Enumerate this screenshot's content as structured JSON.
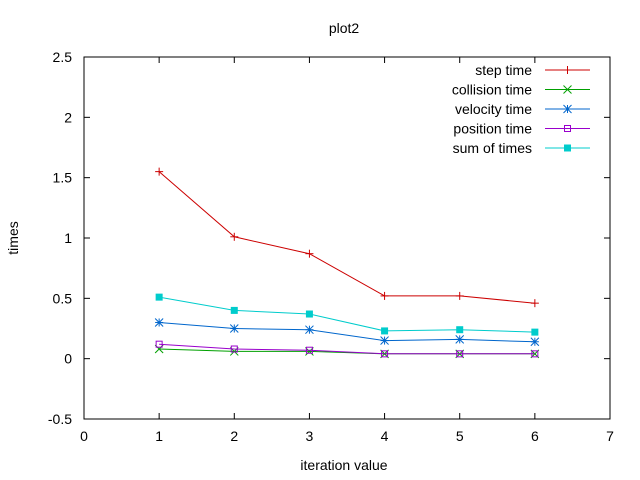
{
  "chart_data": {
    "type": "line",
    "title": "plot2",
    "xlabel": "iteration value",
    "ylabel": "times",
    "xlim": [
      0,
      7
    ],
    "ylim": [
      -0.5,
      2.5
    ],
    "x_ticks": [
      0,
      1,
      2,
      3,
      4,
      5,
      6,
      7
    ],
    "y_ticks": [
      -0.5,
      0,
      0.5,
      1,
      1.5,
      2,
      2.5
    ],
    "x_tick_labels": [
      "0",
      "1",
      "2",
      "3",
      "4",
      "5",
      "6",
      "7"
    ],
    "y_tick_labels": [
      "-0.5",
      "0",
      "0.5",
      "1",
      "1.5",
      "2",
      "2.5"
    ],
    "grid": false,
    "legend_position": "top-right",
    "x": [
      1,
      2,
      3,
      4,
      5,
      6
    ],
    "series": [
      {
        "name": "step time",
        "color": "#cc0000",
        "marker": "plus",
        "values": [
          1.55,
          1.01,
          0.87,
          0.52,
          0.52,
          0.46
        ]
      },
      {
        "name": "collision time",
        "color": "#00a000",
        "marker": "cross",
        "values": [
          0.08,
          0.06,
          0.06,
          0.04,
          0.04,
          0.04
        ]
      },
      {
        "name": "velocity time",
        "color": "#0066cc",
        "marker": "asterisk",
        "values": [
          0.3,
          0.25,
          0.24,
          0.15,
          0.16,
          0.14
        ]
      },
      {
        "name": "position time",
        "color": "#9900cc",
        "marker": "open-square",
        "values": [
          0.12,
          0.08,
          0.07,
          0.04,
          0.04,
          0.04
        ]
      },
      {
        "name": "sum of times",
        "color": "#00cccc",
        "marker": "filled-square",
        "values": [
          0.51,
          0.4,
          0.37,
          0.23,
          0.24,
          0.22
        ]
      }
    ]
  }
}
